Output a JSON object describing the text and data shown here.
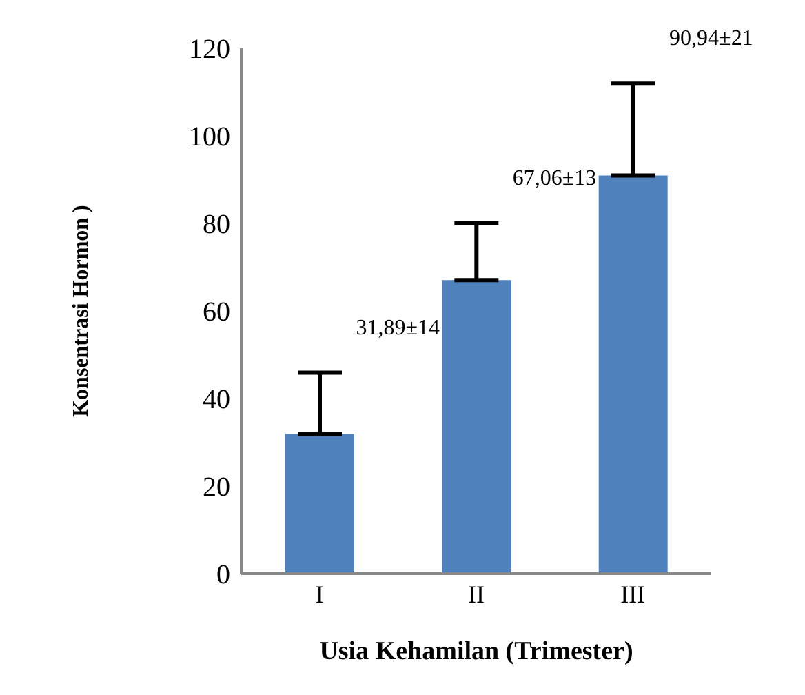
{
  "chart_data": {
    "type": "bar",
    "xlabel": "Usia Kehamilan (Trimester)",
    "ylabel": "Konsentrasi Hormon )",
    "categories": [
      "I",
      "II",
      "III"
    ],
    "values": [
      31.89,
      67.06,
      90.94
    ],
    "errors": [
      [
        31.89,
        45.89
      ],
      [
        67.06,
        80.06
      ],
      [
        90.94,
        111.94
      ]
    ],
    "annotations": [
      "31,89±14",
      "67,06±13",
      "90,94±21"
    ],
    "color": "#4f81bd",
    "ylim": [
      0,
      120
    ],
    "yticks": [
      0,
      20,
      40,
      60,
      80,
      100,
      120
    ],
    "grid": false,
    "legend": false
  }
}
